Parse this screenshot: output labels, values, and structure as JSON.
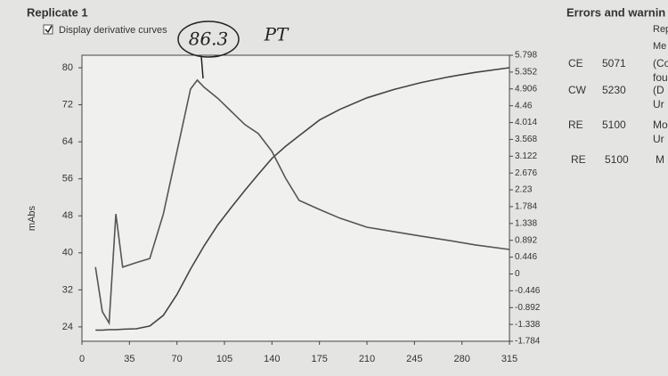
{
  "header": {
    "title": "Replicate 1",
    "checkbox_label": "Display derivative curves"
  },
  "chart_data": {
    "type": "line",
    "y_label": "mAbs",
    "annotations": [
      "86.3",
      "PT"
    ],
    "x": [
      10,
      15,
      20,
      25,
      30,
      40,
      50,
      60,
      70,
      80,
      85,
      90,
      100,
      110,
      120,
      130,
      140,
      150,
      160,
      175,
      190,
      210,
      230,
      250,
      270,
      290,
      315
    ],
    "series": [
      {
        "color": "#444444",
        "values": [
          23.3,
          23.3,
          23.4,
          23.4,
          23.5,
          23.6,
          24.2,
          26.5,
          31,
          36.5,
          39,
          41.5,
          46,
          49.8,
          53.5,
          57,
          60.4,
          63,
          65.3,
          68.7,
          71,
          73.5,
          75.3,
          76.8,
          78,
          79,
          80
        ]
      },
      {
        "color": "#555555",
        "axis": "y2",
        "values": [
          0.18,
          -1.0,
          -1.3,
          1.59,
          0.18,
          0.3,
          0.41,
          1.59,
          3.25,
          4.9,
          5.14,
          4.95,
          4.66,
          4.31,
          3.96,
          3.72,
          3.25,
          2.54,
          1.95,
          1.71,
          1.48,
          1.24,
          1.12,
          1.0,
          0.89,
          0.77,
          0.65
        ]
      }
    ],
    "xlim": [
      0,
      315
    ],
    "xticks": [
      0,
      35,
      70,
      105,
      140,
      175,
      210,
      245,
      280,
      315
    ],
    "ylim": [
      20.9,
      82.7
    ],
    "yticks": [
      24,
      32,
      40,
      48,
      56,
      64,
      72,
      80
    ],
    "y2lim": [
      -1.784,
      5.798
    ],
    "y2ticks": [
      5.798,
      5.352,
      4.906,
      4.46,
      4.014,
      3.568,
      3.122,
      2.676,
      2.23,
      1.784,
      1.338,
      0.892,
      0.446,
      0,
      -0.446,
      -0.892,
      -1.338,
      -1.784
    ],
    "grid": false
  },
  "errors_panel": {
    "title": "Errors and warnin",
    "headers": [
      "Rep",
      "Me"
    ],
    "rows": [
      [
        "CE",
        "5071",
        "(Co",
        "fou"
      ],
      [
        "CW",
        "5230",
        "(D",
        "Ur"
      ],
      [
        "RE",
        "5100",
        "Mo",
        "Ur"
      ],
      [
        "RE",
        "5100",
        "M"
      ]
    ]
  }
}
